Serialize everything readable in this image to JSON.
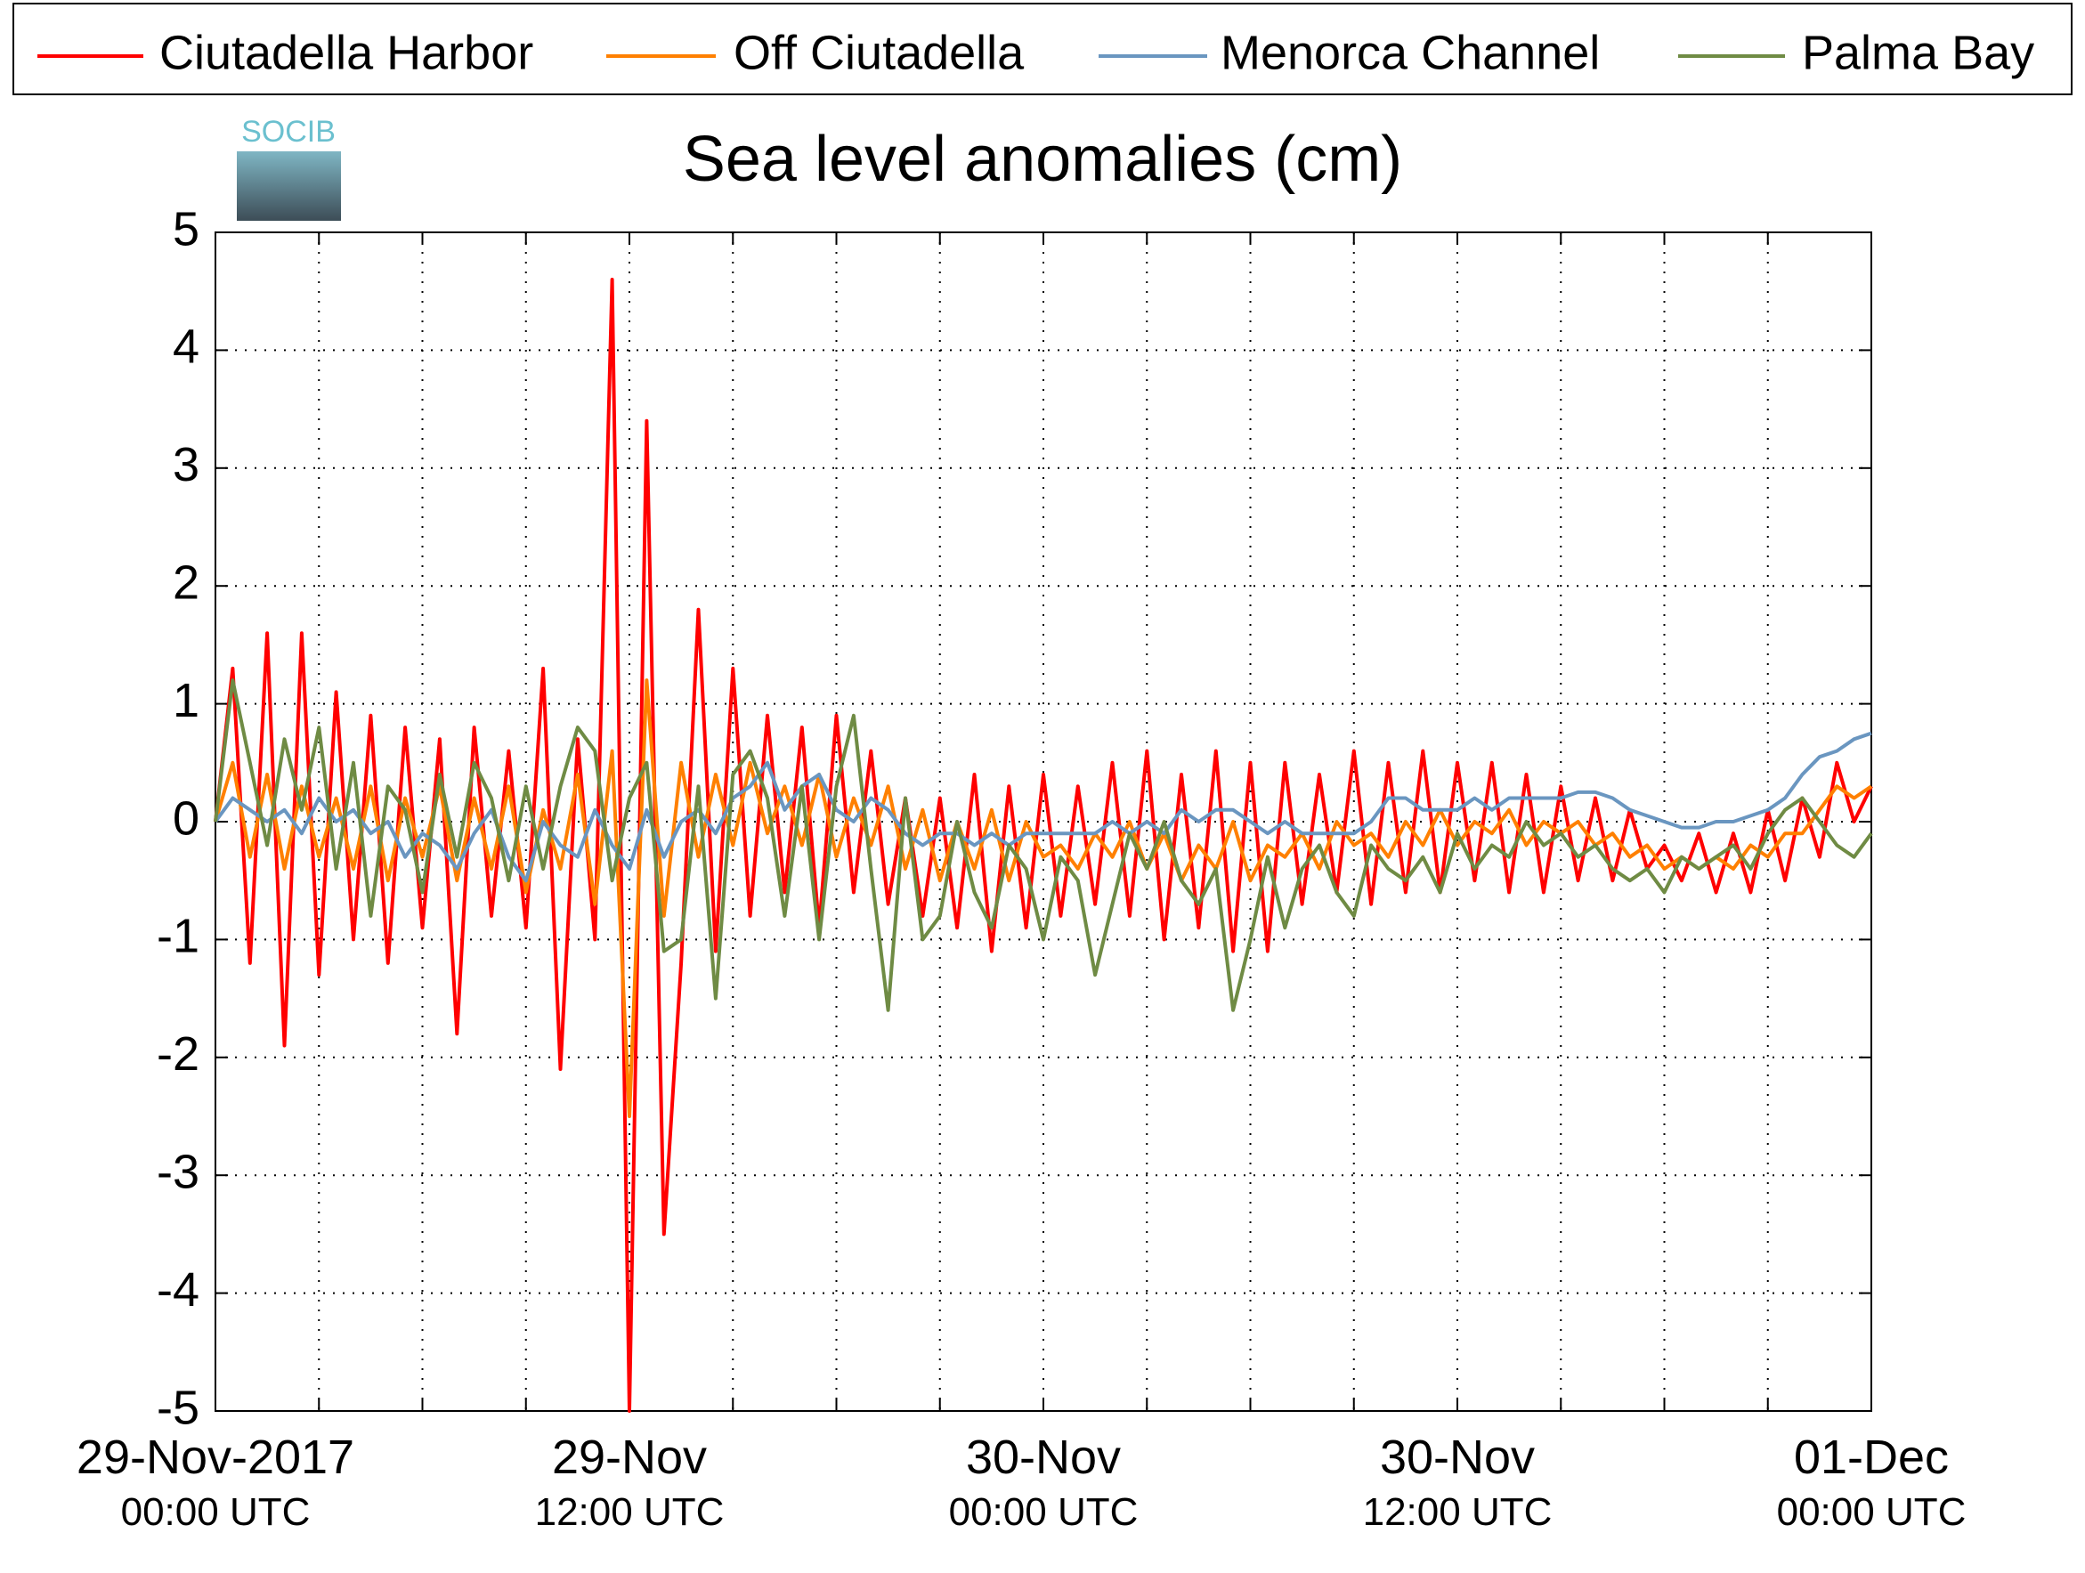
{
  "chart_data": {
    "type": "line",
    "title": "Sea level anomalies (cm)",
    "logo_text": "SOCIB",
    "xlim": [
      "2017-11-29 00:00",
      "2017-12-01 00:00"
    ],
    "xticks": [
      {
        "value": "2017-11-29 00:00",
        "label": "29-Nov-2017\n00:00 UTC"
      },
      {
        "value": "2017-11-29 03:00",
        "label": null
      },
      {
        "value": "2017-11-29 06:00",
        "label": null
      },
      {
        "value": "2017-11-29 09:00",
        "label": null
      },
      {
        "value": "2017-11-29 12:00",
        "label": "29-Nov\n12:00 UTC"
      },
      {
        "value": "2017-11-29 15:00",
        "label": null
      },
      {
        "value": "2017-11-29 18:00",
        "label": null
      },
      {
        "value": "2017-11-29 21:00",
        "label": null
      },
      {
        "value": "2017-11-30 00:00",
        "label": "30-Nov\n00:00 UTC"
      },
      {
        "value": "2017-11-30 03:00",
        "label": null
      },
      {
        "value": "2017-11-30 06:00",
        "label": null
      },
      {
        "value": "2017-11-30 09:00",
        "label": null
      },
      {
        "value": "2017-11-30 12:00",
        "label": "30-Nov\n12:00 UTC"
      },
      {
        "value": "2017-11-30 15:00",
        "label": null
      },
      {
        "value": "2017-11-30 18:00",
        "label": null
      },
      {
        "value": "2017-11-30 21:00",
        "label": null
      },
      {
        "value": "2017-12-01 00:00",
        "label": "01-Dec\n00:00 UTC"
      }
    ],
    "ylim": [
      -5,
      5
    ],
    "yticks": [
      -5,
      -4,
      -3,
      -2,
      -1,
      0,
      1,
      2,
      3,
      4,
      5
    ],
    "grid": true,
    "x": [
      "2017-11-29 00:00",
      "2017-11-29 00:30",
      "2017-11-29 01:00",
      "2017-11-29 01:30",
      "2017-11-29 02:00",
      "2017-11-29 02:30",
      "2017-11-29 03:00",
      "2017-11-29 03:30",
      "2017-11-29 04:00",
      "2017-11-29 04:30",
      "2017-11-29 05:00",
      "2017-11-29 05:30",
      "2017-11-29 06:00",
      "2017-11-29 06:30",
      "2017-11-29 07:00",
      "2017-11-29 07:30",
      "2017-11-29 08:00",
      "2017-11-29 08:30",
      "2017-11-29 09:00",
      "2017-11-29 09:30",
      "2017-11-29 10:00",
      "2017-11-29 10:30",
      "2017-11-29 11:00",
      "2017-11-29 11:30",
      "2017-11-29 12:00",
      "2017-11-29 12:30",
      "2017-11-29 13:00",
      "2017-11-29 13:30",
      "2017-11-29 14:00",
      "2017-11-29 14:30",
      "2017-11-29 15:00",
      "2017-11-29 15:30",
      "2017-11-29 16:00",
      "2017-11-29 16:30",
      "2017-11-29 17:00",
      "2017-11-29 17:30",
      "2017-11-29 18:00",
      "2017-11-29 18:30",
      "2017-11-29 19:00",
      "2017-11-29 19:30",
      "2017-11-29 20:00",
      "2017-11-29 20:30",
      "2017-11-29 21:00",
      "2017-11-29 21:30",
      "2017-11-29 22:00",
      "2017-11-29 22:30",
      "2017-11-29 23:00",
      "2017-11-29 23:30",
      "2017-11-30 00:00",
      "2017-11-30 00:30",
      "2017-11-30 01:00",
      "2017-11-30 01:30",
      "2017-11-30 02:00",
      "2017-11-30 02:30",
      "2017-11-30 03:00",
      "2017-11-30 03:30",
      "2017-11-30 04:00",
      "2017-11-30 04:30",
      "2017-11-30 05:00",
      "2017-11-30 05:30",
      "2017-11-30 06:00",
      "2017-11-30 06:30",
      "2017-11-30 07:00",
      "2017-11-30 07:30",
      "2017-11-30 08:00",
      "2017-11-30 08:30",
      "2017-11-30 09:00",
      "2017-11-30 09:30",
      "2017-11-30 10:00",
      "2017-11-30 10:30",
      "2017-11-30 11:00",
      "2017-11-30 11:30",
      "2017-11-30 12:00",
      "2017-11-30 12:30",
      "2017-11-30 13:00",
      "2017-11-30 13:30",
      "2017-11-30 14:00",
      "2017-11-30 14:30",
      "2017-11-30 15:00",
      "2017-11-30 15:30",
      "2017-11-30 16:00",
      "2017-11-30 16:30",
      "2017-11-30 17:00",
      "2017-11-30 17:30",
      "2017-11-30 18:00",
      "2017-11-30 18:30",
      "2017-11-30 19:00",
      "2017-11-30 19:30",
      "2017-11-30 20:00",
      "2017-11-30 20:30",
      "2017-11-30 21:00",
      "2017-11-30 21:30",
      "2017-11-30 22:00",
      "2017-11-30 22:30",
      "2017-11-30 23:00",
      "2017-11-30 23:30",
      "2017-12-01 00:00"
    ],
    "series": [
      {
        "name": "Ciutadella Harbor",
        "color": "#ff0000",
        "values": [
          0,
          1.3,
          -1.2,
          1.6,
          -1.9,
          1.6,
          -1.3,
          1.1,
          -1.0,
          0.9,
          -1.2,
          0.8,
          -0.9,
          0.7,
          -1.8,
          0.8,
          -0.8,
          0.6,
          -0.9,
          1.3,
          -2.1,
          0.7,
          -1.0,
          4.6,
          -5.0,
          3.4,
          -3.5,
          -1.2,
          1.8,
          -1.1,
          1.3,
          -0.8,
          0.9,
          -0.6,
          0.8,
          -0.9,
          0.9,
          -0.6,
          0.6,
          -0.7,
          0.2,
          -0.8,
          0.2,
          -0.9,
          0.4,
          -1.1,
          0.3,
          -0.9,
          0.4,
          -0.8,
          0.3,
          -0.7,
          0.5,
          -0.8,
          0.6,
          -1.0,
          0.4,
          -0.9,
          0.6,
          -1.1,
          0.5,
          -1.1,
          0.5,
          -0.7,
          0.4,
          -0.6,
          0.6,
          -0.7,
          0.5,
          -0.6,
          0.6,
          -0.6,
          0.5,
          -0.5,
          0.5,
          -0.6,
          0.4,
          -0.6,
          0.3,
          -0.5,
          0.2,
          -0.5,
          0.1,
          -0.4,
          -0.2,
          -0.5,
          -0.1,
          -0.6,
          -0.1,
          -0.6,
          0.1,
          -0.5,
          0.2,
          -0.3,
          0.5,
          0.0,
          0.3
        ]
      },
      {
        "name": "Off Ciutadella",
        "color": "#ff8000",
        "values": [
          0,
          0.5,
          -0.3,
          0.4,
          -0.4,
          0.3,
          -0.3,
          0.2,
          -0.4,
          0.3,
          -0.5,
          0.2,
          -0.3,
          0.3,
          -0.5,
          0.2,
          -0.4,
          0.3,
          -0.6,
          0.1,
          -0.4,
          0.4,
          -0.7,
          0.6,
          -2.5,
          1.2,
          -0.8,
          0.5,
          -0.3,
          0.4,
          -0.2,
          0.5,
          -0.1,
          0.3,
          -0.2,
          0.4,
          -0.3,
          0.2,
          -0.2,
          0.3,
          -0.4,
          0.1,
          -0.5,
          0.0,
          -0.4,
          0.1,
          -0.5,
          0.0,
          -0.3,
          -0.2,
          -0.4,
          -0.1,
          -0.3,
          0.0,
          -0.4,
          -0.1,
          -0.5,
          -0.2,
          -0.4,
          0.0,
          -0.5,
          -0.2,
          -0.3,
          -0.1,
          -0.4,
          0.0,
          -0.2,
          -0.1,
          -0.3,
          0.0,
          -0.2,
          0.1,
          -0.2,
          0.0,
          -0.1,
          0.1,
          -0.2,
          0.0,
          -0.1,
          0.0,
          -0.2,
          -0.1,
          -0.3,
          -0.2,
          -0.4,
          -0.3,
          -0.4,
          -0.3,
          -0.4,
          -0.2,
          -0.3,
          -0.1,
          -0.1,
          0.1,
          0.3,
          0.2,
          0.3
        ]
      },
      {
        "name": "Menorca Channel",
        "color": "#6a96c0",
        "values": [
          0,
          0.2,
          0.1,
          0.0,
          0.1,
          -0.1,
          0.2,
          0.0,
          0.1,
          -0.1,
          0.0,
          -0.3,
          -0.1,
          -0.2,
          -0.4,
          -0.1,
          0.1,
          -0.3,
          -0.5,
          0.0,
          -0.2,
          -0.3,
          0.1,
          -0.2,
          -0.4,
          0.1,
          -0.3,
          0.0,
          0.1,
          -0.1,
          0.2,
          0.3,
          0.5,
          0.1,
          0.3,
          0.4,
          0.1,
          0.0,
          0.2,
          0.1,
          -0.1,
          -0.2,
          -0.1,
          -0.1,
          -0.2,
          -0.1,
          -0.2,
          -0.1,
          -0.1,
          -0.1,
          -0.1,
          -0.1,
          0.0,
          -0.1,
          0.0,
          -0.1,
          0.1,
          0.0,
          0.1,
          0.1,
          0.0,
          -0.1,
          0.0,
          -0.1,
          -0.1,
          -0.1,
          -0.1,
          0.0,
          0.2,
          0.2,
          0.1,
          0.1,
          0.1,
          0.2,
          0.1,
          0.2,
          0.2,
          0.2,
          0.2,
          0.25,
          0.25,
          0.2,
          0.1,
          0.05,
          0.0,
          -0.05,
          -0.05,
          0.0,
          0.0,
          0.05,
          0.1,
          0.2,
          0.4,
          0.55,
          0.6,
          0.7,
          0.75
        ]
      },
      {
        "name": "Palma Bay",
        "color": "#6f8b44",
        "values": [
          0,
          1.2,
          0.5,
          -0.2,
          0.7,
          0.1,
          0.8,
          -0.4,
          0.5,
          -0.8,
          0.3,
          0.1,
          -0.6,
          0.4,
          -0.3,
          0.5,
          0.2,
          -0.5,
          0.3,
          -0.4,
          0.3,
          0.8,
          0.6,
          -0.5,
          0.2,
          0.5,
          -1.1,
          -1.0,
          0.3,
          -1.5,
          0.4,
          0.6,
          0.2,
          -0.8,
          0.3,
          -1.0,
          0.3,
          0.9,
          -0.4,
          -1.6,
          0.2,
          -1.0,
          -0.8,
          0.0,
          -0.6,
          -0.9,
          -0.2,
          -0.4,
          -1.0,
          -0.3,
          -0.5,
          -1.3,
          -0.7,
          -0.1,
          -0.4,
          0.0,
          -0.5,
          -0.7,
          -0.4,
          -1.6,
          -1.0,
          -0.3,
          -0.9,
          -0.4,
          -0.2,
          -0.6,
          -0.8,
          -0.2,
          -0.4,
          -0.5,
          -0.3,
          -0.6,
          -0.1,
          -0.4,
          -0.2,
          -0.3,
          0.0,
          -0.2,
          -0.1,
          -0.3,
          -0.2,
          -0.4,
          -0.5,
          -0.4,
          -0.6,
          -0.3,
          -0.4,
          -0.3,
          -0.2,
          -0.4,
          -0.1,
          0.1,
          0.2,
          0.0,
          -0.2,
          -0.3,
          -0.1
        ]
      }
    ]
  }
}
